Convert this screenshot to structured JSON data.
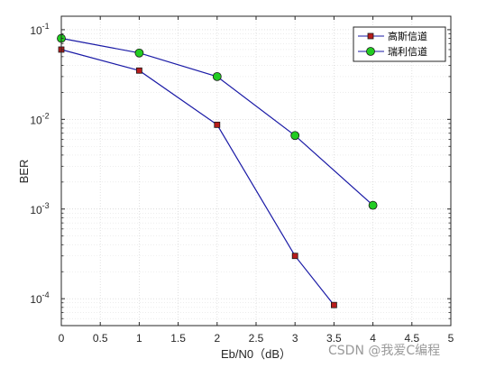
{
  "chart_data": {
    "type": "line",
    "xlabel": "Eb/N0（dB）",
    "ylabel": "BER",
    "xlim": [
      0,
      5
    ],
    "ylim_exponent": [
      -4.3,
      -0.85
    ],
    "y_scale": "log",
    "grid": true,
    "legend_position": "top-right",
    "x_ticks": [
      "0",
      "0.5",
      "1",
      "1.5",
      "2",
      "2.5",
      "3",
      "3.5",
      "4",
      "4.5",
      "5"
    ],
    "y_ticks": [
      {
        "base": "10",
        "exp": "-1",
        "value": 0.1
      },
      {
        "base": "10",
        "exp": "-2",
        "value": 0.01
      },
      {
        "base": "10",
        "exp": "-3",
        "value": 0.001
      },
      {
        "base": "10",
        "exp": "-4",
        "value": 0.0001
      }
    ],
    "series": [
      {
        "name": "高斯信道",
        "color": "#1a1aa6",
        "marker": "square",
        "marker_fill": "#b81c1c",
        "x": [
          0,
          1,
          2,
          3,
          3.5
        ],
        "y": [
          0.06,
          0.035,
          0.0087,
          0.0003,
          8.5e-05
        ]
      },
      {
        "name": "瑞利信道",
        "color": "#1a1aa6",
        "marker": "circle",
        "marker_fill": "#22cc22",
        "x": [
          0,
          1,
          2,
          3,
          4
        ],
        "y": [
          0.08,
          0.055,
          0.03,
          0.0066,
          0.0011
        ]
      }
    ]
  },
  "watermark": "CSDN @我爱C编程"
}
